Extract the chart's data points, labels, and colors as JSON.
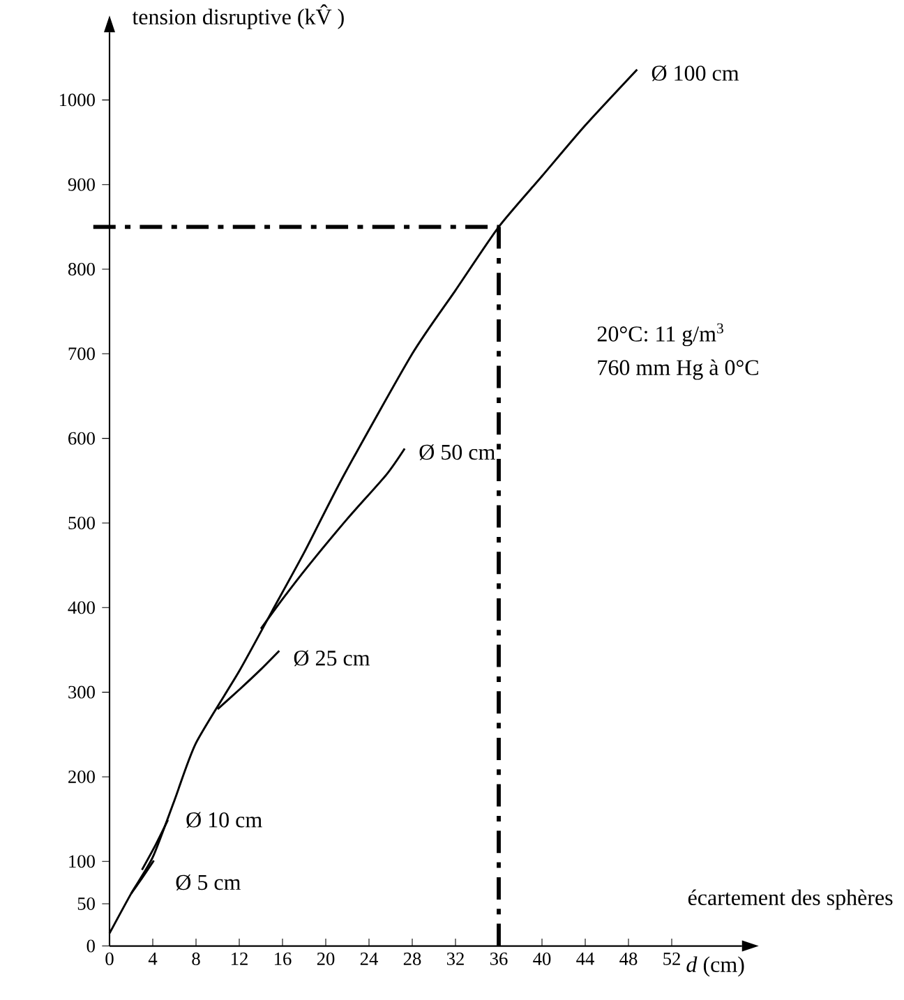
{
  "chart_data": {
    "type": "line",
    "ylabel": "tension disruptive (kV̂ )",
    "xlabel": "*d* (cm)",
    "xlim": [
      0,
      58.5
    ],
    "ylim": [
      0,
      1080
    ],
    "xticks": [
      0,
      4,
      8,
      12,
      16,
      20,
      24,
      28,
      32,
      36,
      40,
      44,
      48,
      52
    ],
    "yticks": [
      0,
      50,
      100,
      200,
      300,
      400,
      500,
      600,
      700,
      800,
      900,
      1000
    ],
    "series": [
      {
        "name": "Ø 100 cm",
        "color": "#000000",
        "x": [
          0,
          2,
          4,
          6,
          8,
          12,
          15,
          18,
          21.7,
          28,
          32,
          36,
          40,
          44,
          48.8
        ],
        "values": [
          15,
          62,
          105,
          172,
          240,
          325,
          395,
          465,
          557,
          700,
          775,
          850,
          910,
          970,
          1036
        ]
      },
      {
        "name": "Ø 50 cm",
        "color": "#000000",
        "x": [
          14,
          16,
          18.3,
          22,
          25.6,
          27.3
        ],
        "values": [
          375,
          410,
          448,
          505,
          557,
          588
        ]
      },
      {
        "name": "Ø 25 cm",
        "color": "#000000",
        "x": [
          10,
          12,
          14,
          15.7
        ],
        "values": [
          280,
          303,
          327,
          349
        ]
      },
      {
        "name": "Ø 10 cm",
        "color": "#000000",
        "x": [
          3,
          4.2,
          5.4
        ],
        "values": [
          90,
          118,
          149
        ]
      },
      {
        "name": "Ø 5 cm",
        "color": "#000000",
        "x": [
          2,
          3,
          4.1
        ],
        "values": [
          62,
          80,
          101
        ]
      }
    ],
    "ref_lines": [
      {
        "axis": "x",
        "value": 36,
        "color": "#000000",
        "line_style": "dashdot"
      },
      {
        "axis": "y",
        "value": 850,
        "color": "#000000",
        "line_style": "dashdot"
      }
    ],
    "annotations": [
      "écartement des sphères",
      "20°C: 11 g/m$^{3}$",
      "760 mm Hg à 0°C"
    ]
  }
}
